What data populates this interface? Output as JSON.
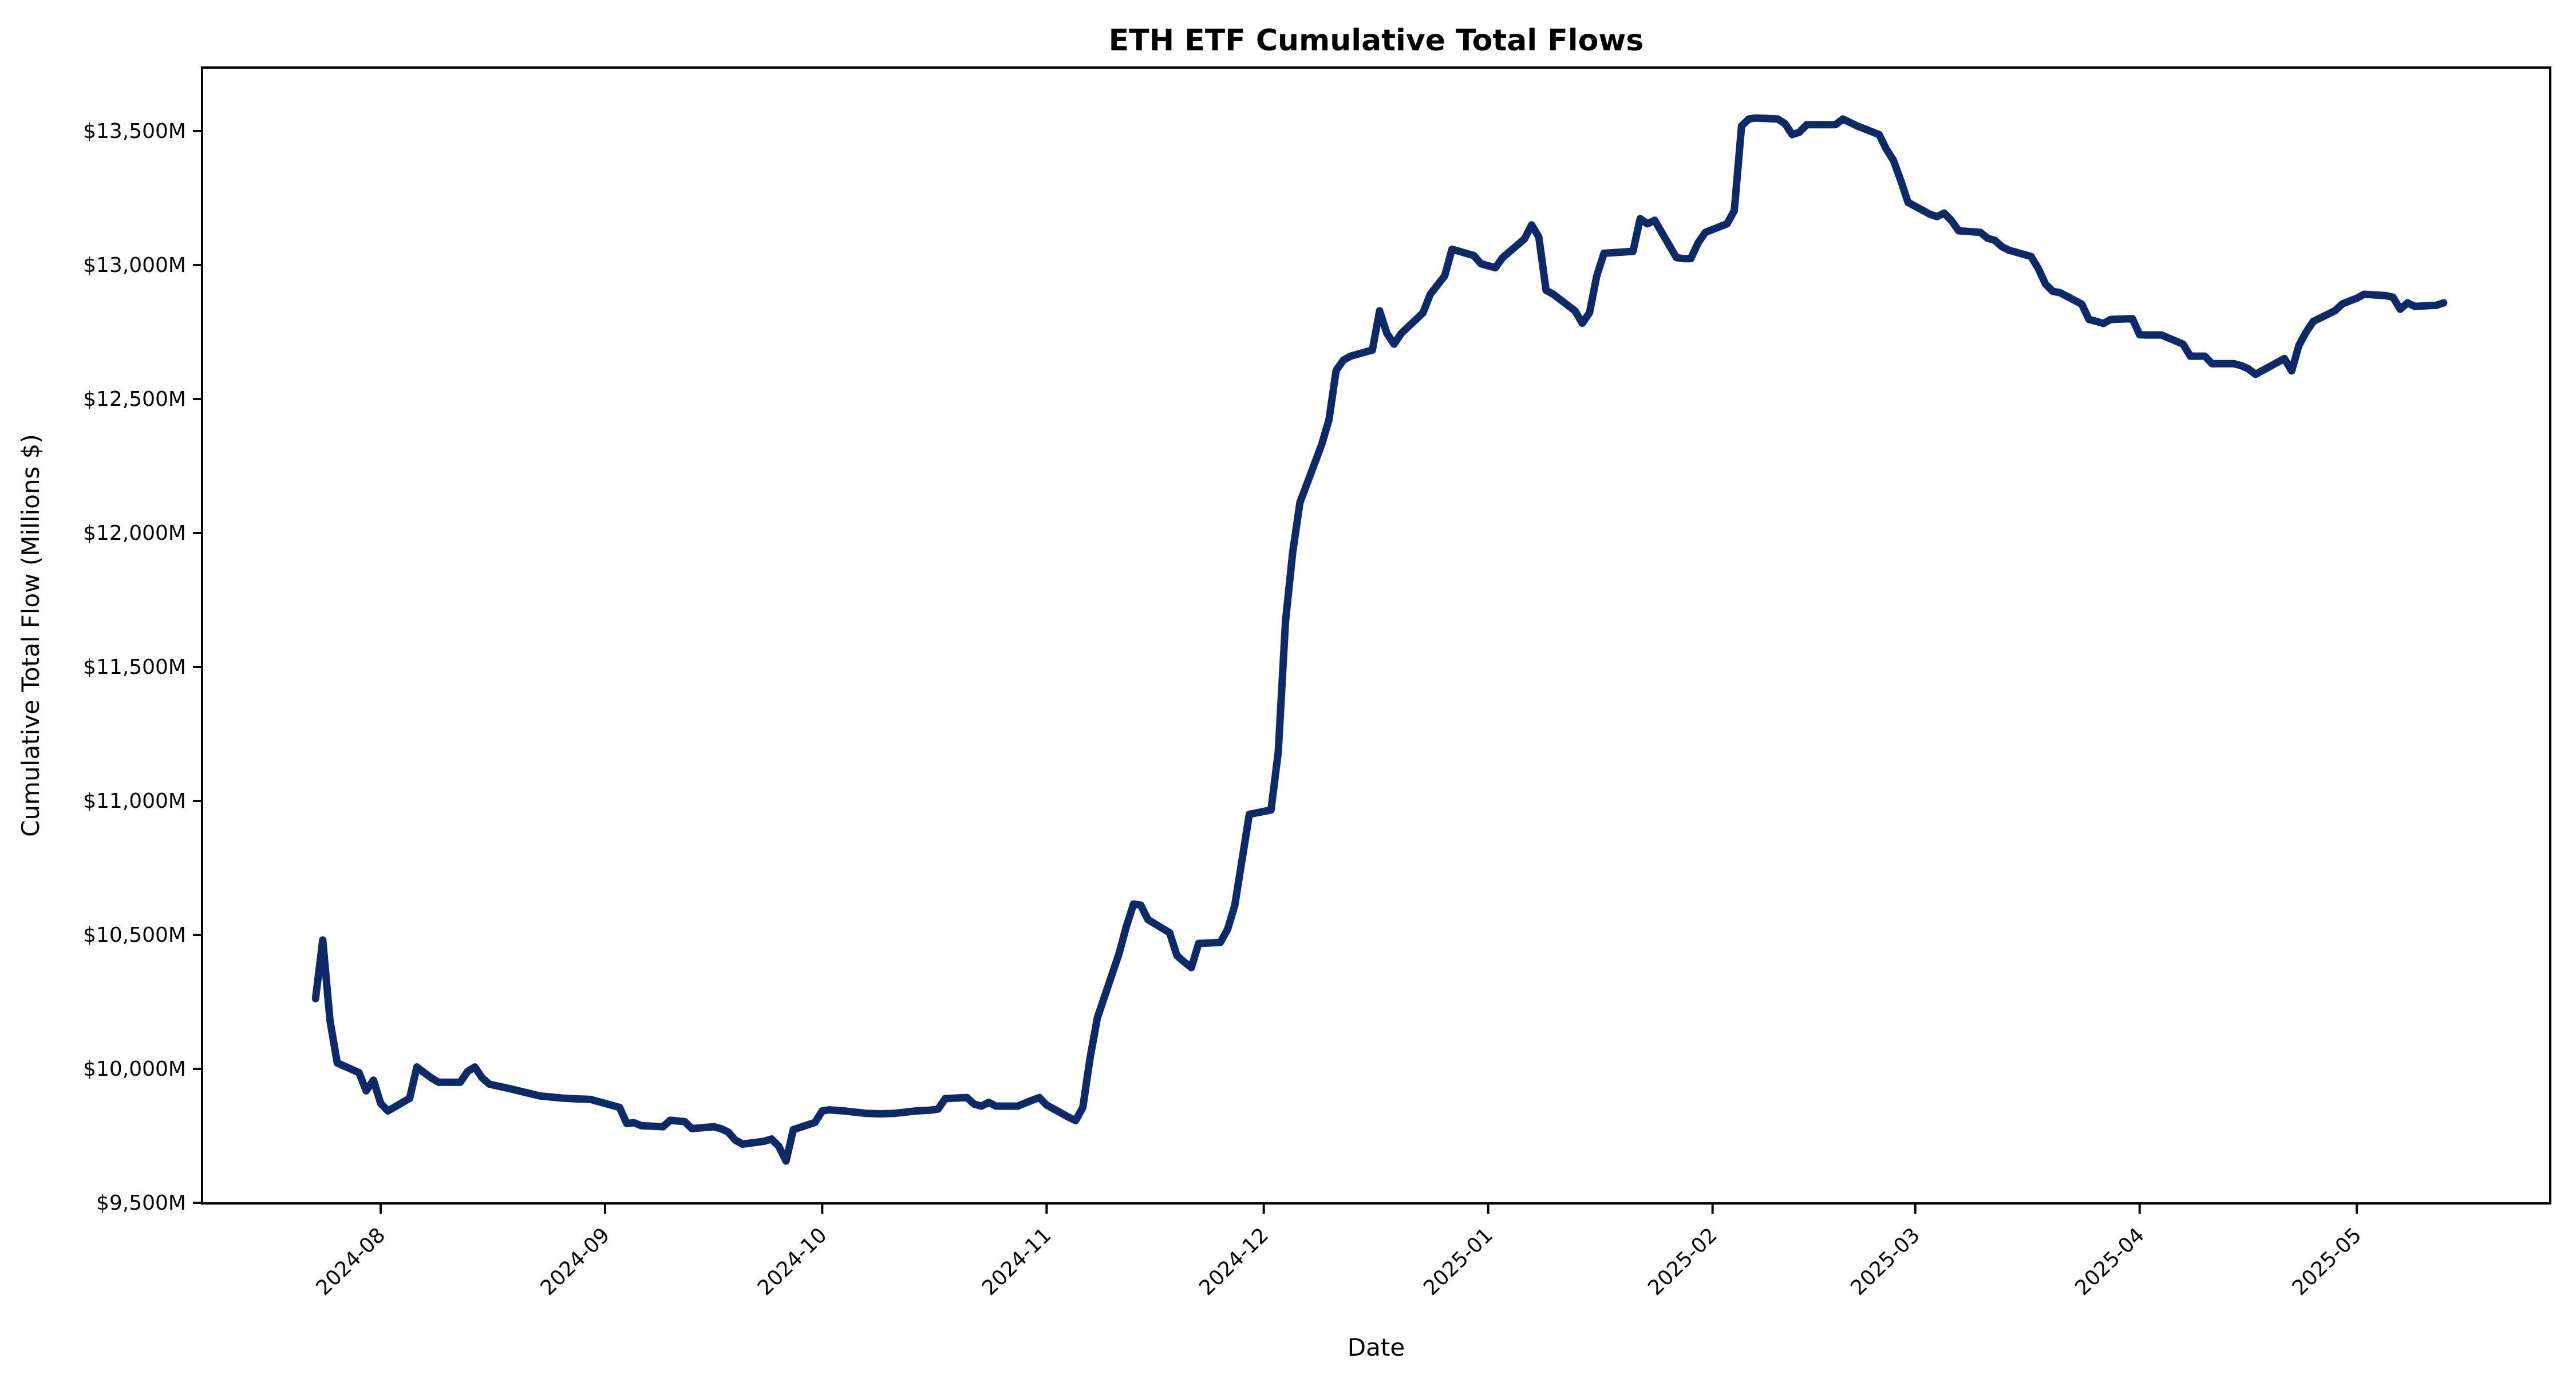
{
  "page": {
    "title": "ETH ETF Cumulative Total Flows"
  },
  "chart_data": {
    "type": "line",
    "title": "ETH ETF Cumulative Total Flows",
    "xlabel": "Date",
    "ylabel": "Cumulative Total Flow (Millions $)",
    "grid": false,
    "legend": "none",
    "line_color": "#0d2a68",
    "axis_color": "#000000",
    "ylim": [
      9497,
      13737
    ],
    "xlim": [
      "2024-07-08",
      "2025-05-28"
    ],
    "y_ticks": [
      {
        "value": 13500,
        "label": "$13,500M"
      },
      {
        "value": 13000,
        "label": "$13,000M"
      },
      {
        "value": 12500,
        "label": "$12,500M"
      },
      {
        "value": 12000,
        "label": "$12,000M"
      },
      {
        "value": 11500,
        "label": "$11,500M"
      },
      {
        "value": 11000,
        "label": "$11,000M"
      },
      {
        "value": 10500,
        "label": "$10,500M"
      },
      {
        "value": 10000,
        "label": "$10,000M"
      },
      {
        "value": 9500,
        "label": "$9,500M"
      }
    ],
    "x_ticks": [
      {
        "date": "2024-08-01",
        "label": "2024-08"
      },
      {
        "date": "2024-09-01",
        "label": "2024-09"
      },
      {
        "date": "2024-10-01",
        "label": "2024-10"
      },
      {
        "date": "2024-11-01",
        "label": "2024-11"
      },
      {
        "date": "2024-12-01",
        "label": "2024-12"
      },
      {
        "date": "2025-01-01",
        "label": "2025-01"
      },
      {
        "date": "2025-02-01",
        "label": "2025-02"
      },
      {
        "date": "2025-03-01",
        "label": "2025-03"
      },
      {
        "date": "2025-04-01",
        "label": "2025-04"
      },
      {
        "date": "2025-05-01",
        "label": "2025-05"
      }
    ],
    "series": [
      {
        "name": "Cumulative Total Flow",
        "points": [
          [
            "2024-07-23",
            10262
          ],
          [
            "2024-07-24",
            10481
          ],
          [
            "2024-07-25",
            10180
          ],
          [
            "2024-07-26",
            10022
          ],
          [
            "2024-07-29",
            9986
          ],
          [
            "2024-07-30",
            9918
          ],
          [
            "2024-07-31",
            9958
          ],
          [
            "2024-08-01",
            9871
          ],
          [
            "2024-08-02",
            9843
          ],
          [
            "2024-08-05",
            9890
          ],
          [
            "2024-08-06",
            10007
          ],
          [
            "2024-08-07",
            9986
          ],
          [
            "2024-08-08",
            9966
          ],
          [
            "2024-08-09",
            9950
          ],
          [
            "2024-08-12",
            9950
          ],
          [
            "2024-08-13",
            9990
          ],
          [
            "2024-08-14",
            10007
          ],
          [
            "2024-08-15",
            9967
          ],
          [
            "2024-08-16",
            9943
          ],
          [
            "2024-08-19",
            9925
          ],
          [
            "2024-08-21",
            9912
          ],
          [
            "2024-08-23",
            9899
          ],
          [
            "2024-08-26",
            9891
          ],
          [
            "2024-08-28",
            9888
          ],
          [
            "2024-08-30",
            9886
          ],
          [
            "2024-09-03",
            9856
          ],
          [
            "2024-09-04",
            9796
          ],
          [
            "2024-09-05",
            9799
          ],
          [
            "2024-09-06",
            9788
          ],
          [
            "2024-09-09",
            9784
          ],
          [
            "2024-09-10",
            9808
          ],
          [
            "2024-09-12",
            9803
          ],
          [
            "2024-09-13",
            9777
          ],
          [
            "2024-09-16",
            9784
          ],
          [
            "2024-09-17",
            9777
          ],
          [
            "2024-09-18",
            9764
          ],
          [
            "2024-09-19",
            9734
          ],
          [
            "2024-09-20",
            9719
          ],
          [
            "2024-09-23",
            9730
          ],
          [
            "2024-09-24",
            9738
          ],
          [
            "2024-09-25",
            9711
          ],
          [
            "2024-09-26",
            9656
          ],
          [
            "2024-09-27",
            9773
          ],
          [
            "2024-09-30",
            9800
          ],
          [
            "2024-10-01",
            9843
          ],
          [
            "2024-10-02",
            9847
          ],
          [
            "2024-10-04",
            9843
          ],
          [
            "2024-10-07",
            9834
          ],
          [
            "2024-10-09",
            9832
          ],
          [
            "2024-10-11",
            9834
          ],
          [
            "2024-10-14",
            9843
          ],
          [
            "2024-10-16",
            9846
          ],
          [
            "2024-10-17",
            9850
          ],
          [
            "2024-10-18",
            9889
          ],
          [
            "2024-10-21",
            9893
          ],
          [
            "2024-10-22",
            9868
          ],
          [
            "2024-10-23",
            9861
          ],
          [
            "2024-10-24",
            9875
          ],
          [
            "2024-10-25",
            9861
          ],
          [
            "2024-10-28",
            9861
          ],
          [
            "2024-10-30",
            9883
          ],
          [
            "2024-10-31",
            9893
          ],
          [
            "2024-11-01",
            9865
          ],
          [
            "2024-11-04",
            9820
          ],
          [
            "2024-11-05",
            9807
          ],
          [
            "2024-11-06",
            9856
          ],
          [
            "2024-11-07",
            10040
          ],
          [
            "2024-11-08",
            10190
          ],
          [
            "2024-11-11",
            10430
          ],
          [
            "2024-11-12",
            10530
          ],
          [
            "2024-11-13",
            10615
          ],
          [
            "2024-11-14",
            10611
          ],
          [
            "2024-11-15",
            10557
          ],
          [
            "2024-11-18",
            10508
          ],
          [
            "2024-11-19",
            10423
          ],
          [
            "2024-11-20",
            10399
          ],
          [
            "2024-11-21",
            10378
          ],
          [
            "2024-11-22",
            10468
          ],
          [
            "2024-11-25",
            10472
          ],
          [
            "2024-11-26",
            10521
          ],
          [
            "2024-11-27",
            10611
          ],
          [
            "2024-11-29",
            10950
          ],
          [
            "2024-12-02",
            10966
          ],
          [
            "2024-12-03",
            11183
          ],
          [
            "2024-12-04",
            11669
          ],
          [
            "2024-12-05",
            11930
          ],
          [
            "2024-12-06",
            12114
          ],
          [
            "2024-12-09",
            12330
          ],
          [
            "2024-12-10",
            12422
          ],
          [
            "2024-12-11",
            12607
          ],
          [
            "2024-12-12",
            12645
          ],
          [
            "2024-12-13",
            12660
          ],
          [
            "2024-12-16",
            12683
          ],
          [
            "2024-12-17",
            12829
          ],
          [
            "2024-12-18",
            12745
          ],
          [
            "2024-12-19",
            12705
          ],
          [
            "2024-12-20",
            12745
          ],
          [
            "2024-12-23",
            12822
          ],
          [
            "2024-12-24",
            12891
          ],
          [
            "2024-12-26",
            12960
          ],
          [
            "2024-12-27",
            13059
          ],
          [
            "2024-12-30",
            13036
          ],
          [
            "2024-12-31",
            13005
          ],
          [
            "2025-01-02",
            12990
          ],
          [
            "2025-01-03",
            13028
          ],
          [
            "2025-01-06",
            13097
          ],
          [
            "2025-01-07",
            13150
          ],
          [
            "2025-01-08",
            13104
          ],
          [
            "2025-01-09",
            12906
          ],
          [
            "2025-01-10",
            12891
          ],
          [
            "2025-01-13",
            12829
          ],
          [
            "2025-01-14",
            12783
          ],
          [
            "2025-01-15",
            12822
          ],
          [
            "2025-01-16",
            12960
          ],
          [
            "2025-01-17",
            13044
          ],
          [
            "2025-01-21",
            13051
          ],
          [
            "2025-01-22",
            13173
          ],
          [
            "2025-01-23",
            13154
          ],
          [
            "2025-01-24",
            13167
          ],
          [
            "2025-01-27",
            13028
          ],
          [
            "2025-01-28",
            13024
          ],
          [
            "2025-01-29",
            13024
          ],
          [
            "2025-01-30",
            13083
          ],
          [
            "2025-01-31",
            13122
          ],
          [
            "2025-02-03",
            13154
          ],
          [
            "2025-02-04",
            13203
          ],
          [
            "2025-02-05",
            13519
          ],
          [
            "2025-02-06",
            13545
          ],
          [
            "2025-02-07",
            13549
          ],
          [
            "2025-02-10",
            13545
          ],
          [
            "2025-02-11",
            13528
          ],
          [
            "2025-02-12",
            13487
          ],
          [
            "2025-02-13",
            13496
          ],
          [
            "2025-02-14",
            13524
          ],
          [
            "2025-02-18",
            13524
          ],
          [
            "2025-02-19",
            13545
          ],
          [
            "2025-02-20",
            13532
          ],
          [
            "2025-02-21",
            13519
          ],
          [
            "2025-02-24",
            13487
          ],
          [
            "2025-02-25",
            13433
          ],
          [
            "2025-02-26",
            13390
          ],
          [
            "2025-02-27",
            13316
          ],
          [
            "2025-02-28",
            13234
          ],
          [
            "2025-03-03",
            13190
          ],
          [
            "2025-03-04",
            13181
          ],
          [
            "2025-03-05",
            13194
          ],
          [
            "2025-03-06",
            13166
          ],
          [
            "2025-03-07",
            13128
          ],
          [
            "2025-03-10",
            13122
          ],
          [
            "2025-03-11",
            13100
          ],
          [
            "2025-03-12",
            13092
          ],
          [
            "2025-03-13",
            13068
          ],
          [
            "2025-03-14",
            13055
          ],
          [
            "2025-03-17",
            13032
          ],
          [
            "2025-03-18",
            12987
          ],
          [
            "2025-03-19",
            12929
          ],
          [
            "2025-03-20",
            12902
          ],
          [
            "2025-03-21",
            12897
          ],
          [
            "2025-03-24",
            12854
          ],
          [
            "2025-03-25",
            12797
          ],
          [
            "2025-03-26",
            12790
          ],
          [
            "2025-03-27",
            12782
          ],
          [
            "2025-03-28",
            12797
          ],
          [
            "2025-03-31",
            12800
          ],
          [
            "2025-04-01",
            12740
          ],
          [
            "2025-04-02",
            12739
          ],
          [
            "2025-04-03",
            12739
          ],
          [
            "2025-04-04",
            12739
          ],
          [
            "2025-04-07",
            12705
          ],
          [
            "2025-04-08",
            12660
          ],
          [
            "2025-04-09",
            12660
          ],
          [
            "2025-04-10",
            12660
          ],
          [
            "2025-04-11",
            12632
          ],
          [
            "2025-04-14",
            12632
          ],
          [
            "2025-04-15",
            12625
          ],
          [
            "2025-04-16",
            12613
          ],
          [
            "2025-04-17",
            12592
          ],
          [
            "2025-04-21",
            12651
          ],
          [
            "2025-04-22",
            12605
          ],
          [
            "2025-04-23",
            12700
          ],
          [
            "2025-04-24",
            12750
          ],
          [
            "2025-04-25",
            12790
          ],
          [
            "2025-04-28",
            12830
          ],
          [
            "2025-04-29",
            12855
          ],
          [
            "2025-04-30",
            12866
          ],
          [
            "2025-05-01",
            12876
          ],
          [
            "2025-05-02",
            12891
          ],
          [
            "2025-05-05",
            12886
          ],
          [
            "2025-05-06",
            12880
          ],
          [
            "2025-05-07",
            12835
          ],
          [
            "2025-05-08",
            12859
          ],
          [
            "2025-05-09",
            12846
          ],
          [
            "2025-05-12",
            12850
          ],
          [
            "2025-05-13",
            12859
          ]
        ]
      }
    ]
  }
}
